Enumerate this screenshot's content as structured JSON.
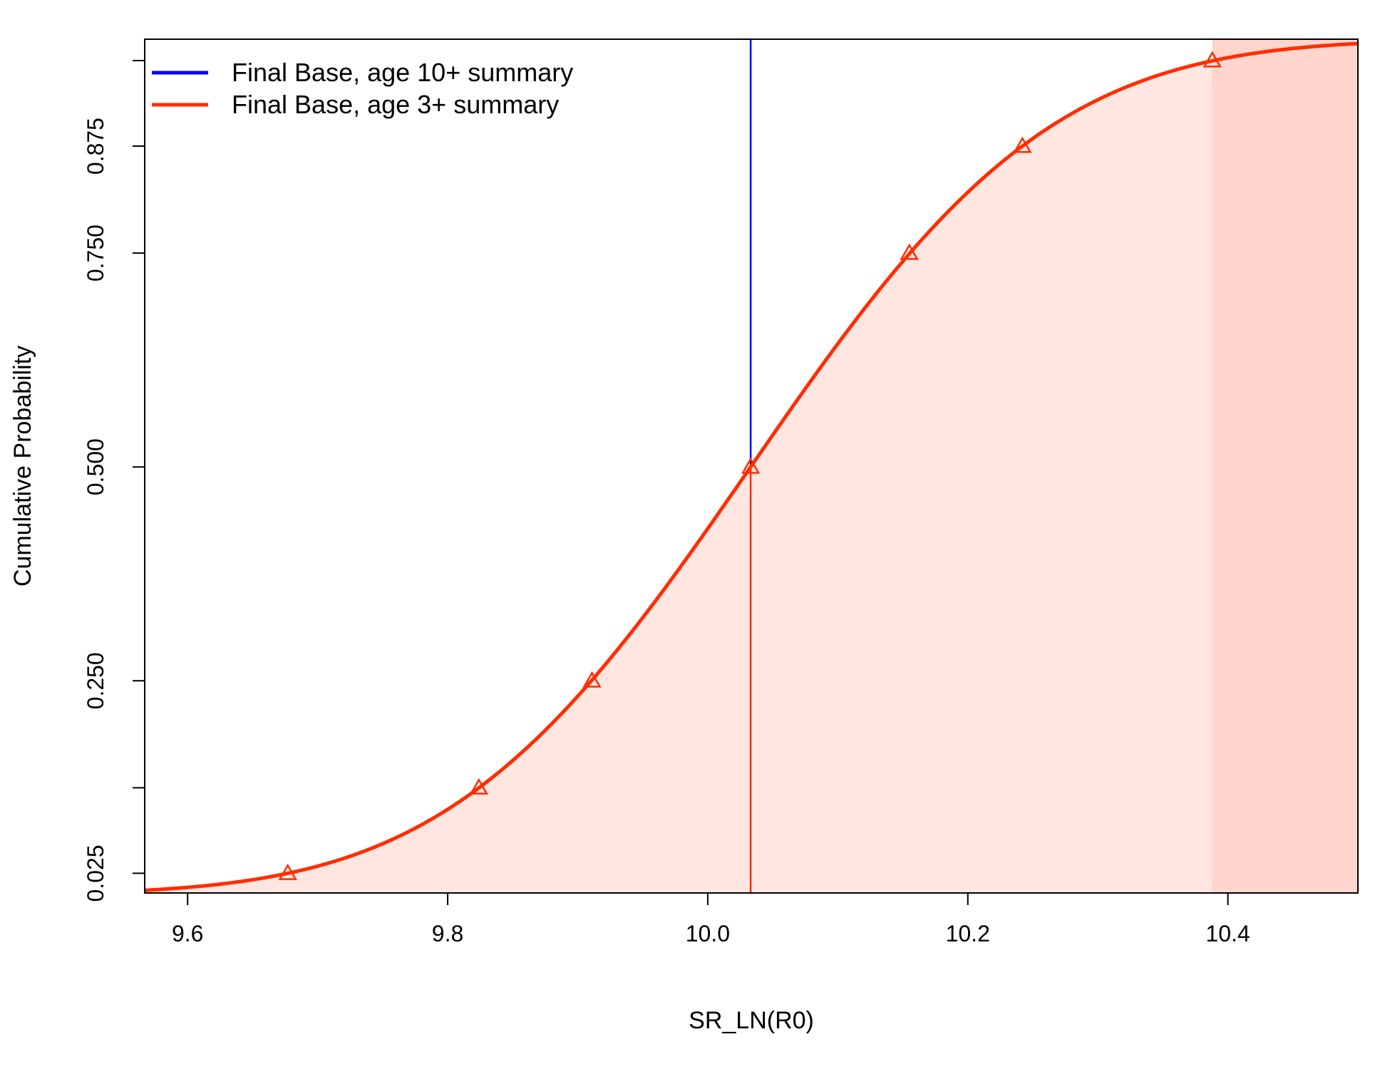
{
  "chart_data": {
    "type": "line",
    "title": "",
    "xlabel": "SR_LN(R0)",
    "ylabel": "Cumulative Probability",
    "xlim": [
      9.567,
      10.5
    ],
    "ylim": [
      0.002,
      1.0
    ],
    "x_ticks": [
      {
        "value": 9.6,
        "label": "9.6"
      },
      {
        "value": 9.8,
        "label": "9.8"
      },
      {
        "value": 10.0,
        "label": "10.0"
      },
      {
        "value": 10.2,
        "label": "10.2"
      },
      {
        "value": 10.4,
        "label": "10.4"
      }
    ],
    "y_ticks": [
      {
        "value": 0.025,
        "label": "0.025"
      },
      {
        "value": 0.125,
        "label": ""
      },
      {
        "value": 0.25,
        "label": "0.250"
      },
      {
        "value": 0.5,
        "label": "0.500"
      },
      {
        "value": 0.75,
        "label": "0.750"
      },
      {
        "value": 0.875,
        "label": "0.875"
      },
      {
        "value": 0.975,
        "label": ""
      }
    ],
    "grid": false,
    "legend_position": "top-left",
    "legend": [
      {
        "label": "Final Base, age 10+ summary",
        "color": "#0000ff"
      },
      {
        "label": "Final Base, age 3+ summary",
        "color": "#ff2d00"
      }
    ],
    "distribution": {
      "type": "normal",
      "mean": 10.033,
      "sd": 0.1816
    },
    "series": [
      {
        "name": "Final Base, age 3+ summary",
        "color": "#ff2d00",
        "quantile_markers": [
          {
            "x": 9.677,
            "y": 0.025
          },
          {
            "x": 9.824,
            "y": 0.125
          },
          {
            "x": 9.911,
            "y": 0.25
          },
          {
            "x": 10.033,
            "y": 0.5
          },
          {
            "x": 10.155,
            "y": 0.75
          },
          {
            "x": 10.242,
            "y": 0.875
          },
          {
            "x": 10.388,
            "y": 0.975
          }
        ]
      }
    ],
    "vertical_lines": [
      {
        "series": "Final Base, age 10+ summary",
        "x": 10.033,
        "y_from": 0.5,
        "y_to": 1.0,
        "color": "#0000ff"
      },
      {
        "series": "Final Base, age 3+ summary",
        "x": 10.033,
        "y_from": 0.002,
        "y_to": 0.5,
        "color": "#ff2d00"
      }
    ],
    "shading": {
      "fill_color": "#ffe6e1",
      "tail_color": "#ffd5cd",
      "tail_from_x": 10.388
    }
  }
}
